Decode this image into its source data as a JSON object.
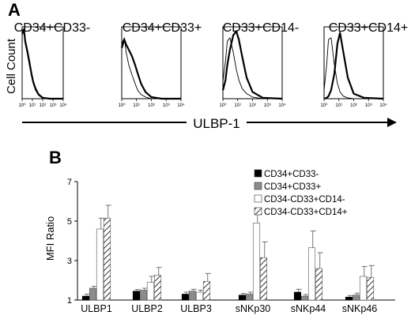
{
  "panel_a": {
    "label": "A",
    "ylabel": "Cell Count",
    "xlabel": "ULBP-1",
    "titles": [
      "CD34+CD33-",
      "CD34+CD33+",
      "CD33+CD14-",
      "CD33+CD14+"
    ],
    "tick_labels": [
      "10⁰",
      "10¹",
      "10²",
      "10³",
      "10⁴"
    ]
  },
  "panel_b": {
    "label": "B"
  },
  "chart_data": [
    {
      "type": "line",
      "panel": "A",
      "description": "flow cytometry histograms (thin line: control, thick line: ULBP-1), log scale",
      "x_scale": "log",
      "x_range": [
        1,
        10000
      ],
      "xlabel": "ULBP-1",
      "ylabel": "Cell Count",
      "panels": [
        {
          "title": "CD34+CD33-",
          "x": [
            1,
            1.5,
            2,
            3,
            5,
            8,
            12,
            20,
            40,
            100,
            500,
            10000
          ],
          "series": [
            {
              "values": [
                75,
                80,
                65,
                55,
                40,
                28,
                18,
                10,
                4,
                1,
                0,
                0
              ]
            },
            {
              "values": [
                78,
                82,
                68,
                58,
                44,
                30,
                20,
                12,
                5,
                1,
                0,
                0
              ]
            }
          ]
        },
        {
          "title": "CD34+CD33+",
          "x": [
            1,
            1.5,
            2,
            3,
            5,
            8,
            12,
            20,
            40,
            100,
            500,
            10000
          ],
          "series": [
            {
              "values": [
                65,
                72,
                55,
                40,
                28,
                18,
                10,
                5,
                2,
                0,
                0,
                0
              ]
            },
            {
              "values": [
                60,
                70,
                64,
                58,
                50,
                40,
                30,
                18,
                8,
                2,
                0,
                0
              ]
            }
          ]
        },
        {
          "title": "CD33+CD14-",
          "x": [
            1,
            1.5,
            2,
            3,
            5,
            8,
            12,
            20,
            40,
            100,
            500,
            10000
          ],
          "series": [
            {
              "values": [
                20,
                45,
                68,
                72,
                55,
                35,
                22,
                12,
                6,
                2,
                0,
                0
              ]
            },
            {
              "values": [
                10,
                22,
                40,
                58,
                75,
                80,
                70,
                50,
                25,
                8,
                1,
                0
              ]
            }
          ]
        },
        {
          "title": "CD33+CD14+",
          "x": [
            1,
            1.5,
            2,
            3,
            5,
            8,
            12,
            20,
            40,
            100,
            500,
            10000
          ],
          "series": [
            {
              "values": [
                10,
                40,
                70,
                72,
                40,
                18,
                8,
                3,
                1,
                0,
                0,
                0
              ]
            },
            {
              "values": [
                0,
                1,
                3,
                10,
                30,
                65,
                78,
                55,
                25,
                6,
                1,
                0
              ]
            }
          ]
        }
      ]
    },
    {
      "type": "bar",
      "panel": "B",
      "ylabel": "MFI Ratio",
      "ylim": [
        1,
        7
      ],
      "yticks": [
        1,
        3,
        5,
        7
      ],
      "categories": [
        "ULBP1",
        "ULBP2",
        "ULBP3",
        "sNKp30",
        "sNKp44",
        "sNKp46"
      ],
      "legend_position": "top-right",
      "series": [
        {
          "name": "CD34+CD33-",
          "color": "#000000",
          "values": [
            1.2,
            1.45,
            1.3,
            1.25,
            1.4,
            1.15
          ],
          "errors": [
            0.1,
            0.08,
            0.1,
            0.08,
            0.15,
            0.08
          ]
        },
        {
          "name": "CD34+CD33+",
          "color": "#8c8c8c",
          "values": [
            1.6,
            1.5,
            1.45,
            1.3,
            1.2,
            1.25
          ],
          "errors": [
            0.1,
            0.1,
            0.1,
            0.1,
            0.08,
            0.1
          ]
        },
        {
          "name": "CD34-CD33+CD14-",
          "color": "#ffffff",
          "values": [
            4.6,
            1.9,
            1.4,
            4.9,
            3.65,
            2.2
          ],
          "errors": [
            0.55,
            0.3,
            0.1,
            0.5,
            0.85,
            0.5
          ]
        },
        {
          "name": "CD34-CD33+CD14+",
          "color": "hatch",
          "values": [
            5.15,
            2.25,
            1.95,
            3.15,
            2.6,
            2.15
          ],
          "errors": [
            0.65,
            0.4,
            0.4,
            0.8,
            0.8,
            0.6
          ]
        }
      ]
    }
  ]
}
